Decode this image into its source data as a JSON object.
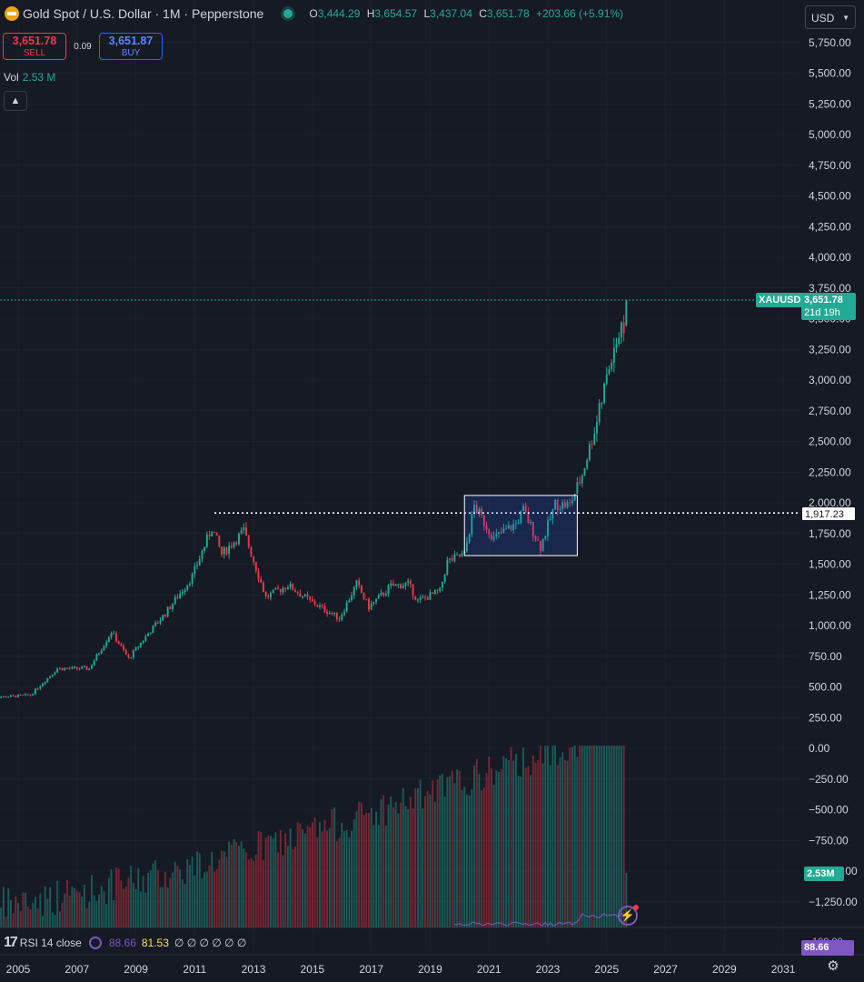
{
  "header": {
    "symbol_title": "Gold Spot / U.S. Dollar · 1M · Pepperstone",
    "ohlc": {
      "open_label": "O",
      "open": "3,444.29",
      "high_label": "H",
      "high": "3,654.57",
      "low_label": "L",
      "low": "3,437.04",
      "close_label": "C",
      "close": "3,651.78",
      "change": "+203.66 (+5.91%)"
    },
    "currency": "USD"
  },
  "trade": {
    "sell_price": "3,651.78",
    "sell_label": "SELL",
    "spread": "0.09",
    "buy_price": "3,651.87",
    "buy_label": "BUY"
  },
  "volume_legend": {
    "label": "Vol",
    "value": "2.53 M"
  },
  "rsi_legend": {
    "label": "RSI 14 close",
    "value1": "88.66",
    "value2": "81.53",
    "placeholders": "∅ ∅ ∅ ∅ ∅ ∅"
  },
  "price_axis": {
    "ticks": [
      "5,750.00",
      "5,500.00",
      "5,250.00",
      "5,000.00",
      "4,750.00",
      "4,500.00",
      "4,250.00",
      "4,000.00",
      "3,750.00",
      "3,500.00",
      "3,250.00",
      "3,000.00",
      "2,750.00",
      "2,500.00",
      "2,250.00",
      "2,000.00",
      "1,750.00",
      "1,500.00",
      "1,250.00",
      "1,000.00",
      "750.00",
      "500.00",
      "250.00",
      "0.00",
      "−250.00",
      "−500.00",
      "−750.00",
      "−1,000.00",
      "−1,250.00"
    ]
  },
  "time_axis": {
    "ticks": [
      "2005",
      "2007",
      "2009",
      "2011",
      "2013",
      "2015",
      "2017",
      "2019",
      "2021",
      "2023",
      "2025",
      "2027",
      "2029",
      "2031"
    ]
  },
  "labels": {
    "symbol_tag": "XAUUSD",
    "last_price": "3,651.78",
    "countdown": "21d 19h",
    "hline_price": "1,917.23",
    "volume_tag": "2.53M",
    "rsi_tag": "88.66",
    "rsi_axis_top": "100.00"
  },
  "colors": {
    "up": "#22ab94",
    "down": "#f23645",
    "bg": "#161a25",
    "grid": "#2a2e39",
    "rsi": "#7e57c2"
  },
  "chart_data": {
    "type": "candlestick",
    "interval": "1M",
    "x_range": [
      "2004-01",
      "2031-12"
    ],
    "y_range": [
      -1400,
      5850
    ],
    "horizontal_line": 1917.23,
    "rectangle": {
      "x": [
        "2020-03",
        "2024-01"
      ],
      "y": [
        1570,
        2060
      ]
    },
    "anchors": [
      [
        "2004-01",
        410
      ],
      [
        "2005-06",
        435
      ],
      [
        "2006-05",
        650
      ],
      [
        "2007-06",
        650
      ],
      [
        "2008-03",
        950
      ],
      [
        "2008-10",
        730
      ],
      [
        "2009-06",
        935
      ],
      [
        "2010-01",
        1100
      ],
      [
        "2010-12",
        1400
      ],
      [
        "2011-08",
        1800
      ],
      [
        "2011-12",
        1580
      ],
      [
        "2012-09",
        1770
      ],
      [
        "2013-06",
        1230
      ],
      [
        "2014-03",
        1330
      ],
      [
        "2014-12",
        1200
      ],
      [
        "2015-12",
        1060
      ],
      [
        "2016-07",
        1340
      ],
      [
        "2016-12",
        1150
      ],
      [
        "2017-09",
        1320
      ],
      [
        "2018-04",
        1340
      ],
      [
        "2018-08",
        1200
      ],
      [
        "2019-05",
        1280
      ],
      [
        "2019-08",
        1520
      ],
      [
        "2020-03",
        1580
      ],
      [
        "2020-07",
        1975
      ],
      [
        "2021-03",
        1710
      ],
      [
        "2021-12",
        1830
      ],
      [
        "2022-03",
        1940
      ],
      [
        "2022-10",
        1640
      ],
      [
        "2023-04",
        1990
      ],
      [
        "2023-10",
        1980
      ],
      [
        "2024-03",
        2230
      ],
      [
        "2024-10",
        2745
      ],
      [
        "2025-04",
        3290
      ],
      [
        "2025-08",
        3444
      ],
      [
        "2025-09",
        3651
      ]
    ],
    "last": {
      "date": "2025-09",
      "open": 3444.29,
      "high": 3654.57,
      "low": 3437.04,
      "close": 3651.78
    },
    "volume_last": "2.53M",
    "rsi_last": [
      88.66,
      81.53
    ]
  }
}
